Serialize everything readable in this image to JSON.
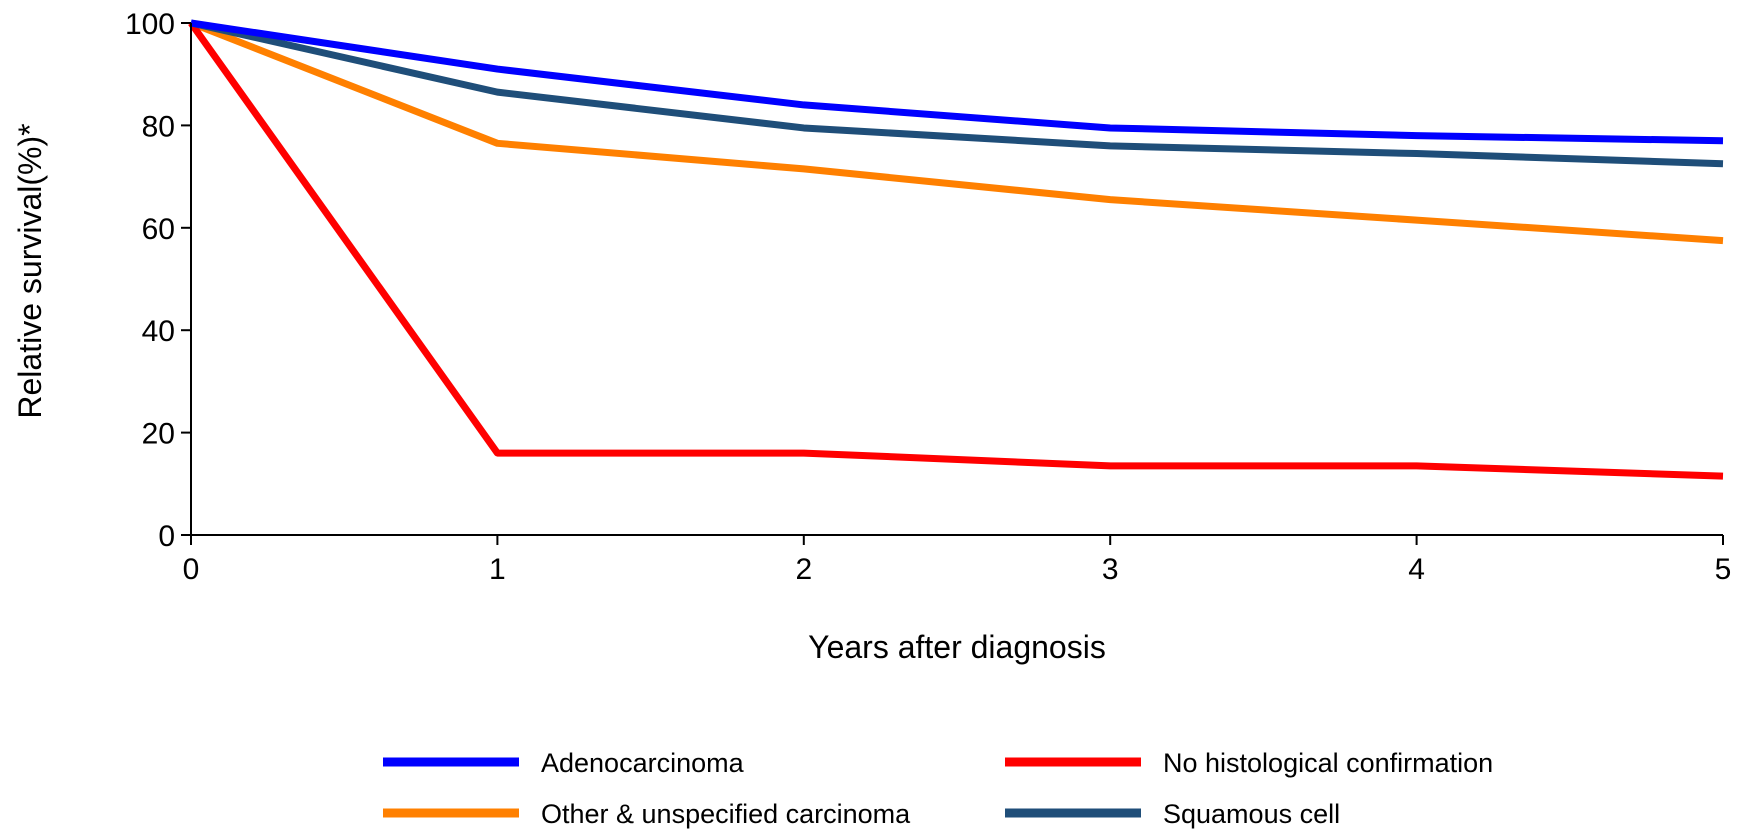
{
  "chart_data": {
    "type": "line",
    "xlabel": "Years after diagnosis",
    "ylabel": "Relative survival(%)*",
    "x": [
      0,
      1,
      2,
      3,
      4,
      5
    ],
    "xlim": [
      0,
      5
    ],
    "ylim": [
      0,
      100
    ],
    "xticks": [
      "0",
      "1",
      "2",
      "3",
      "4",
      "5"
    ],
    "yticks": [
      "0",
      "20",
      "40",
      "60",
      "80",
      "100"
    ],
    "grid": false,
    "legend_position": "bottom",
    "series": [
      {
        "name": "Adenocarcinoma",
        "color": "#0000FF",
        "values": [
          100,
          91,
          84,
          79.5,
          78,
          77
        ]
      },
      {
        "name": "No histological confirmation",
        "color": "#FF0000",
        "values": [
          100,
          16,
          16,
          13.5,
          13.5,
          11.5
        ]
      },
      {
        "name": "Other & unspecified carcinoma",
        "color": "#FF8000",
        "values": [
          100,
          76.5,
          71.5,
          65.5,
          61.5,
          57.5
        ]
      },
      {
        "name": "Squamous cell",
        "color": "#1F4E79",
        "values": [
          100,
          86.5,
          79.5,
          76,
          74.5,
          72.5
        ]
      }
    ]
  }
}
